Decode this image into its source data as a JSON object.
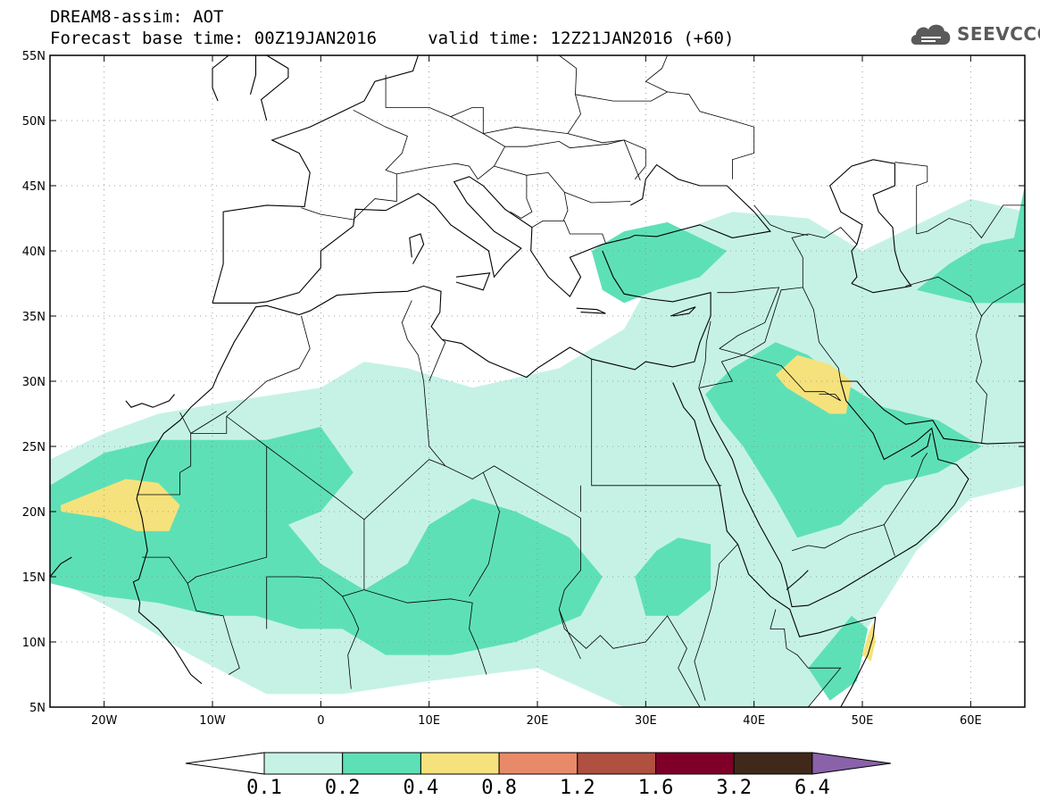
{
  "header": {
    "title_line1": "DREAM8-assim: AOT",
    "title_line2": "Forecast base time: 00Z19JAN2016     valid time: 12Z21JAN2016 (+60)"
  },
  "logo": {
    "text": "SEEVCCC",
    "icon": "cloud-icon",
    "color": "#5a5a5a"
  },
  "map": {
    "lon_range": [
      -25,
      65
    ],
    "lat_range": [
      5,
      55
    ],
    "lat_labels": [
      {
        "v": 55,
        "t": "55N"
      },
      {
        "v": 50,
        "t": "50N"
      },
      {
        "v": 45,
        "t": "45N"
      },
      {
        "v": 40,
        "t": "40N"
      },
      {
        "v": 35,
        "t": "35N"
      },
      {
        "v": 30,
        "t": "30N"
      },
      {
        "v": 25,
        "t": "25N"
      },
      {
        "v": 20,
        "t": "20N"
      },
      {
        "v": 15,
        "t": "15N"
      },
      {
        "v": 10,
        "t": "10N"
      },
      {
        "v": 5,
        "t": "5N"
      }
    ],
    "lon_labels": [
      {
        "v": -20,
        "t": "20W"
      },
      {
        "v": -10,
        "t": "10W"
      },
      {
        "v": 0,
        "t": "0"
      },
      {
        "v": 10,
        "t": "10E"
      },
      {
        "v": 20,
        "t": "20E"
      },
      {
        "v": 30,
        "t": "30E"
      },
      {
        "v": 40,
        "t": "40E"
      },
      {
        "v": 50,
        "t": "50E"
      },
      {
        "v": 60,
        "t": "60E"
      }
    ],
    "grid": "dotted",
    "fields": [
      {
        "level": "0.1",
        "color": "#c6f2e6",
        "polys": [
          [
            [
              -25,
              24
            ],
            [
              -20,
              26
            ],
            [
              -15,
              27.5
            ],
            [
              -8,
              28.5
            ],
            [
              0,
              29.5
            ],
            [
              4,
              31.5
            ],
            [
              8,
              31
            ],
            [
              14,
              29.5
            ],
            [
              22,
              31
            ],
            [
              28,
              34
            ],
            [
              30,
              37
            ],
            [
              33,
              41.5
            ],
            [
              38,
              43
            ],
            [
              45,
              42.5
            ],
            [
              50,
              40
            ],
            [
              55,
              42
            ],
            [
              60,
              44
            ],
            [
              65,
              43
            ],
            [
              65,
              22
            ],
            [
              60,
              21
            ],
            [
              55,
              17
            ],
            [
              52,
              13
            ],
            [
              48,
              8
            ],
            [
              45,
              5
            ],
            [
              28,
              5
            ],
            [
              20,
              8
            ],
            [
              10,
              7
            ],
            [
              2,
              6
            ],
            [
              -5,
              6
            ],
            [
              -12,
              9
            ],
            [
              -18,
              12
            ],
            [
              -25,
              15
            ]
          ],
          [
            [
              55,
              33
            ],
            [
              60,
              34
            ],
            [
              65,
              35
            ],
            [
              65,
              30
            ],
            [
              60,
              29
            ],
            [
              55,
              30
            ]
          ]
        ]
      },
      {
        "level": "0.2",
        "color": "#5ee0b6",
        "polys": [
          [
            [
              -25,
              22
            ],
            [
              -20,
              24.5
            ],
            [
              -15,
              25.5
            ],
            [
              -10,
              25.5
            ],
            [
              -5,
              25.5
            ],
            [
              0,
              26.5
            ],
            [
              3,
              23
            ],
            [
              0,
              20
            ],
            [
              -3,
              19
            ],
            [
              0,
              16
            ],
            [
              4,
              14
            ],
            [
              8,
              16
            ],
            [
              10,
              19
            ],
            [
              14,
              21
            ],
            [
              18,
              20
            ],
            [
              23,
              18
            ],
            [
              26,
              15
            ],
            [
              24,
              12
            ],
            [
              18,
              10
            ],
            [
              12,
              9
            ],
            [
              6,
              9
            ],
            [
              2,
              11
            ],
            [
              -2,
              11
            ],
            [
              -6,
              12
            ],
            [
              -10,
              12
            ],
            [
              -15,
              13
            ],
            [
              -20,
              13.5
            ],
            [
              -25,
              14.5
            ]
          ],
          [
            [
              25,
              40
            ],
            [
              28,
              41.5
            ],
            [
              32,
              42.2
            ],
            [
              35,
              41
            ],
            [
              37.5,
              40
            ],
            [
              35,
              38
            ],
            [
              31,
              37
            ],
            [
              28,
              36
            ],
            [
              26,
              37
            ]
          ],
          [
            [
              35.5,
              29
            ],
            [
              38,
              31
            ],
            [
              42,
              33
            ],
            [
              45,
              32
            ],
            [
              48,
              30
            ],
            [
              52,
              28
            ],
            [
              57,
              27
            ],
            [
              61,
              25
            ],
            [
              57,
              23
            ],
            [
              52,
              22
            ],
            [
              48,
              19
            ],
            [
              44,
              18
            ],
            [
              42,
              21
            ],
            [
              39,
              25
            ],
            [
              37,
              27
            ]
          ],
          [
            [
              55,
              37
            ],
            [
              58,
              39
            ],
            [
              61,
              40.5
            ],
            [
              64,
              41
            ],
            [
              65,
              45
            ],
            [
              65,
              36
            ],
            [
              60,
              36
            ]
          ],
          [
            [
              29,
              15
            ],
            [
              31,
              17
            ],
            [
              33,
              18
            ],
            [
              36,
              17.5
            ],
            [
              36,
              14
            ],
            [
              33,
              12
            ],
            [
              30,
              12
            ]
          ],
          [
            [
              45,
              8
            ],
            [
              47,
              10
            ],
            [
              49,
              12
            ],
            [
              50.5,
              11
            ],
            [
              49.5,
              7
            ],
            [
              47,
              5.5
            ]
          ]
        ]
      },
      {
        "level": "0.4",
        "color": "#f5e27d",
        "polys": [
          [
            [
              -24,
              20.5
            ],
            [
              -21,
              21.5
            ],
            [
              -18,
              22.5
            ],
            [
              -15,
              22.2
            ],
            [
              -13,
              20.5
            ],
            [
              -14,
              18.5
            ],
            [
              -17,
              18.5
            ],
            [
              -20,
              19.5
            ],
            [
              -24,
              20
            ]
          ],
          [
            [
              42,
              30.5
            ],
            [
              44,
              32
            ],
            [
              47,
              31.3
            ],
            [
              49,
              30
            ],
            [
              48.5,
              27.5
            ],
            [
              47,
              27.5
            ],
            [
              45,
              28.5
            ],
            [
              43,
              29.5
            ]
          ],
          [
            [
              50,
              9
            ],
            [
              50.5,
              10.5
            ],
            [
              51,
              11.5
            ],
            [
              51.2,
              10
            ],
            [
              50.8,
              8.5
            ]
          ]
        ]
      }
    ],
    "coast_color": "#000000"
  },
  "colorbar": {
    "levels": [
      "0.1",
      "0.2",
      "0.4",
      "0.8",
      "1.2",
      "1.6",
      "3.2",
      "6.4"
    ],
    "colors": [
      "#ffffff",
      "#c6f2e6",
      "#5ee0b6",
      "#f5e27d",
      "#e88a6a",
      "#b05040",
      "#7e0028",
      "#40291a",
      "#8a62aa"
    ]
  }
}
